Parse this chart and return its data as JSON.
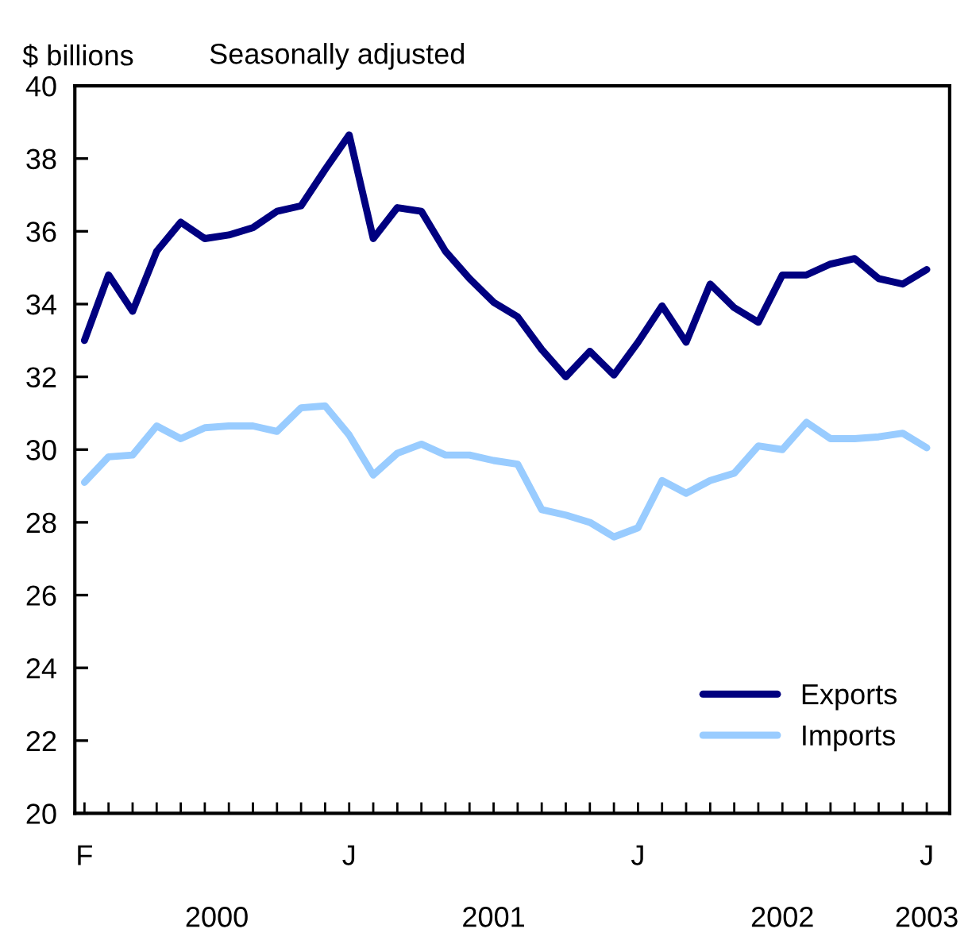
{
  "chart_data": {
    "type": "line",
    "ylabel": "$ billions",
    "subtitle": "Seasonally adjusted",
    "categories": [
      "F",
      null,
      null,
      null,
      null,
      null,
      null,
      null,
      null,
      null,
      null,
      "J",
      null,
      null,
      null,
      null,
      null,
      null,
      null,
      null,
      null,
      null,
      null,
      "J",
      null,
      null,
      null,
      null,
      null,
      null,
      null,
      null,
      null,
      null,
      null,
      "J"
    ],
    "series": [
      {
        "name": "Exports",
        "color": "#000080",
        "values": [
          33.0,
          34.8,
          33.8,
          35.45,
          36.25,
          35.8,
          35.9,
          36.1,
          36.55,
          36.7,
          37.7,
          38.65,
          35.8,
          36.65,
          36.55,
          35.45,
          34.7,
          34.05,
          33.65,
          32.75,
          32.0,
          32.7,
          32.05,
          32.95,
          33.95,
          32.95,
          34.55,
          33.9,
          33.5,
          34.8,
          34.8,
          35.1,
          35.25,
          34.7,
          34.55,
          34.95
        ]
      },
      {
        "name": "Imports",
        "color": "#99ccff",
        "values": [
          29.1,
          29.8,
          29.85,
          30.65,
          30.3,
          30.6,
          30.65,
          30.65,
          30.5,
          31.15,
          31.2,
          30.4,
          29.3,
          29.9,
          30.15,
          29.85,
          29.85,
          29.7,
          29.6,
          28.35,
          28.2,
          28.0,
          27.6,
          27.85,
          29.15,
          28.8,
          29.15,
          29.35,
          30.1,
          30.0,
          30.75,
          30.3,
          30.3,
          30.35,
          30.45,
          30.05
        ]
      }
    ],
    "ylim": [
      20,
      40
    ],
    "yticks": [
      20,
      22,
      24,
      26,
      28,
      30,
      32,
      34,
      36,
      38,
      40
    ],
    "annotations": [
      "2000",
      "2001",
      "2002",
      "2003"
    ],
    "legend": "bottom right",
    "grid": false,
    "marker": "none",
    "line_style": "solid"
  }
}
